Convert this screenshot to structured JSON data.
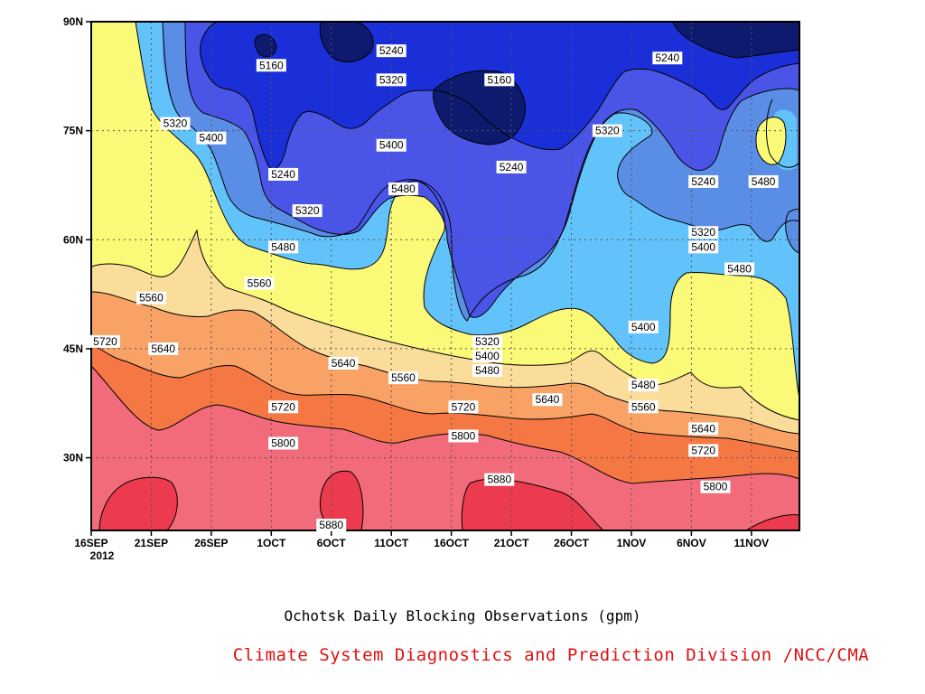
{
  "title": "Ochotsk Daily Blocking Observations (gpm)",
  "credit": "Climate System Diagnostics and Prediction Division /NCC/CMA",
  "chart_data": {
    "type": "heatmap",
    "subtype": "filled-contour hovmoller",
    "title": "Ochotsk Daily Blocking Observations (gpm)",
    "xlabel": "",
    "ylabel": "",
    "x_ticks": [
      "16SEP",
      "21SEP",
      "26SEP",
      "1OCT",
      "6OCT",
      "11OCT",
      "16OCT",
      "21OCT",
      "26OCT",
      "1NOV",
      "6NOV",
      "11NOV"
    ],
    "x_tick_sub": "2012",
    "x_range": [
      "2012-09-16",
      "2012-11-14"
    ],
    "y_ticks": [
      "30N",
      "45N",
      "60N",
      "75N",
      "90N"
    ],
    "y_range": [
      20,
      90
    ],
    "grid": true,
    "contour_levels": [
      5160,
      5240,
      5320,
      5400,
      5480,
      5560,
      5640,
      5720,
      5800,
      5880
    ],
    "fill_colors": {
      "below_5160": "#0d1a6e",
      "5160_5240": "#1a2fd8",
      "5240_5320": "#4a55e8",
      "5320_5400": "#5a8ee6",
      "5400_5480": "#62c3fb",
      "5480_5560": "#fafa78",
      "5560_5640": "#fbdd9b",
      "5640_5720": "#f9a266",
      "5720_5800": "#f57744",
      "5800_5880": "#f16b7a",
      "above_5880": "#ec3a4e"
    },
    "contour_labels": [
      {
        "date": "2012-10-01",
        "lat": 84,
        "value": 5160
      },
      {
        "date": "2012-10-11",
        "lat": 86,
        "value": 5240
      },
      {
        "date": "2012-10-20",
        "lat": 82,
        "value": 5160
      },
      {
        "date": "2012-10-11",
        "lat": 82,
        "value": 5320
      },
      {
        "date": "2012-11-03",
        "lat": 85,
        "value": 5240
      },
      {
        "date": "2012-09-23",
        "lat": 76,
        "value": 5320
      },
      {
        "date": "2012-09-26",
        "lat": 74,
        "value": 5400
      },
      {
        "date": "2012-10-11",
        "lat": 73,
        "value": 5400
      },
      {
        "date": "2012-10-29",
        "lat": 75,
        "value": 5320
      },
      {
        "date": "2012-10-21",
        "lat": 70,
        "value": 5240
      },
      {
        "date": "2012-10-02",
        "lat": 69,
        "value": 5240
      },
      {
        "date": "2012-11-06",
        "lat": 68,
        "value": 5240
      },
      {
        "date": "2012-11-11",
        "lat": 68,
        "value": 5480
      },
      {
        "date": "2012-10-04",
        "lat": 64,
        "value": 5320
      },
      {
        "date": "2012-10-12",
        "lat": 67,
        "value": 5480
      },
      {
        "date": "2012-11-06",
        "lat": 61,
        "value": 5320
      },
      {
        "date": "2012-11-06",
        "lat": 59,
        "value": 5400
      },
      {
        "date": "2012-10-02",
        "lat": 59,
        "value": 5480
      },
      {
        "date": "2012-11-09",
        "lat": 56,
        "value": 5480
      },
      {
        "date": "2012-09-21",
        "lat": 52,
        "value": 5560
      },
      {
        "date": "2012-09-30",
        "lat": 54,
        "value": 5560
      },
      {
        "date": "2012-11-01",
        "lat": 48,
        "value": 5400
      },
      {
        "date": "2012-10-19",
        "lat": 46,
        "value": 5320
      },
      {
        "date": "2012-10-19",
        "lat": 44,
        "value": 5400
      },
      {
        "date": "2012-10-19",
        "lat": 42,
        "value": 5480
      },
      {
        "date": "2012-09-16",
        "lat": 46,
        "value": 5720
      },
      {
        "date": "2012-09-22",
        "lat": 45,
        "value": 5640
      },
      {
        "date": "2012-10-07",
        "lat": 43,
        "value": 5640
      },
      {
        "date": "2012-10-12",
        "lat": 41,
        "value": 5560
      },
      {
        "date": "2012-11-01",
        "lat": 40,
        "value": 5480
      },
      {
        "date": "2012-11-01",
        "lat": 37,
        "value": 5560
      },
      {
        "date": "2012-11-06",
        "lat": 34,
        "value": 5640
      },
      {
        "date": "2012-10-02",
        "lat": 37,
        "value": 5720
      },
      {
        "date": "2012-10-17",
        "lat": 37,
        "value": 5720
      },
      {
        "date": "2012-10-24",
        "lat": 38,
        "value": 5640
      },
      {
        "date": "2012-11-06",
        "lat": 31,
        "value": 5720
      },
      {
        "date": "2012-10-02",
        "lat": 32,
        "value": 5800
      },
      {
        "date": "2012-10-17",
        "lat": 33,
        "value": 5800
      },
      {
        "date": "2012-11-07",
        "lat": 26,
        "value": 5800
      },
      {
        "date": "2012-10-20",
        "lat": 27,
        "value": 5880
      },
      {
        "date": "2012-10-06",
        "lat": 20,
        "value": 5880
      }
    ]
  }
}
